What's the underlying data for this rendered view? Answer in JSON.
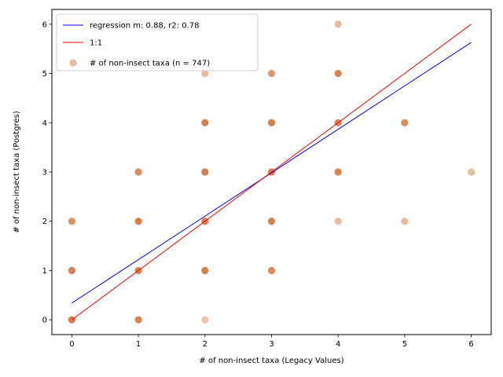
{
  "chart_data": {
    "type": "scatter",
    "xlabel": "# of non-insect taxa (Legacy Values)",
    "ylabel": "# of non-insect taxa (Postgres)",
    "xlim": [
      -0.3,
      6.3
    ],
    "ylim": [
      -0.3,
      6.3
    ],
    "xticks": [
      0,
      1,
      2,
      3,
      4,
      5,
      6
    ],
    "yticks": [
      0,
      1,
      2,
      3,
      4,
      5,
      6
    ],
    "grid": false,
    "legend_position": "top-left",
    "series": [
      {
        "name": "regression m: 0.88, r2: 0.78",
        "kind": "line",
        "color": "#0000ff",
        "x": [
          0,
          6
        ],
        "y": [
          0.34,
          5.63
        ]
      },
      {
        "name": "1:1",
        "kind": "line",
        "color": "#ff0000",
        "x": [
          0,
          6
        ],
        "y": [
          0,
          6
        ]
      },
      {
        "name": "# of non-insect taxa (n = 747)",
        "kind": "scatter",
        "color": "#d8763c",
        "points": [
          {
            "x": 0,
            "y": 0,
            "opacity": 0.95
          },
          {
            "x": 0,
            "y": 1,
            "opacity": 0.9
          },
          {
            "x": 0,
            "y": 2,
            "opacity": 0.8
          },
          {
            "x": 1,
            "y": 0,
            "opacity": 0.9
          },
          {
            "x": 1,
            "y": 1,
            "opacity": 0.95
          },
          {
            "x": 1,
            "y": 2,
            "opacity": 0.95
          },
          {
            "x": 1,
            "y": 3,
            "opacity": 0.85
          },
          {
            "x": 2,
            "y": 0,
            "opacity": 0.45
          },
          {
            "x": 2,
            "y": 1,
            "opacity": 0.95
          },
          {
            "x": 2,
            "y": 2,
            "opacity": 0.95
          },
          {
            "x": 2,
            "y": 3,
            "opacity": 0.95
          },
          {
            "x": 2,
            "y": 4,
            "opacity": 0.95
          },
          {
            "x": 2,
            "y": 5,
            "opacity": 0.5
          },
          {
            "x": 3,
            "y": 1,
            "opacity": 0.85
          },
          {
            "x": 3,
            "y": 2,
            "opacity": 0.95
          },
          {
            "x": 3,
            "y": 3,
            "opacity": 0.95
          },
          {
            "x": 3,
            "y": 4,
            "opacity": 0.95
          },
          {
            "x": 3,
            "y": 5,
            "opacity": 0.75
          },
          {
            "x": 4,
            "y": 2,
            "opacity": 0.5
          },
          {
            "x": 4,
            "y": 3,
            "opacity": 0.9
          },
          {
            "x": 4,
            "y": 4,
            "opacity": 0.9
          },
          {
            "x": 4,
            "y": 5,
            "opacity": 0.9
          },
          {
            "x": 4,
            "y": 6,
            "opacity": 0.5
          },
          {
            "x": 5,
            "y": 2,
            "opacity": 0.5
          },
          {
            "x": 5,
            "y": 4,
            "opacity": 0.85
          },
          {
            "x": 6,
            "y": 3,
            "opacity": 0.5
          }
        ]
      }
    ]
  }
}
